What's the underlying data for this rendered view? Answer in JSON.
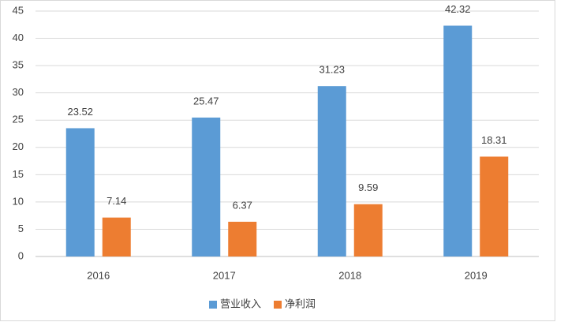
{
  "chart_data": {
    "type": "bar",
    "categories": [
      "2016",
      "2017",
      "2018",
      "2019"
    ],
    "series": [
      {
        "name": "营业收入",
        "color": "#5b9bd5",
        "values": [
          23.52,
          25.47,
          31.23,
          42.32
        ]
      },
      {
        "name": "净利润",
        "color": "#ed7d31",
        "values": [
          7.14,
          6.37,
          9.59,
          18.31
        ]
      }
    ],
    "ylim": [
      0,
      45
    ],
    "yticks": [
      0,
      5,
      10,
      15,
      20,
      25,
      30,
      35,
      40,
      45
    ],
    "grid": true,
    "legend": "bottom"
  }
}
